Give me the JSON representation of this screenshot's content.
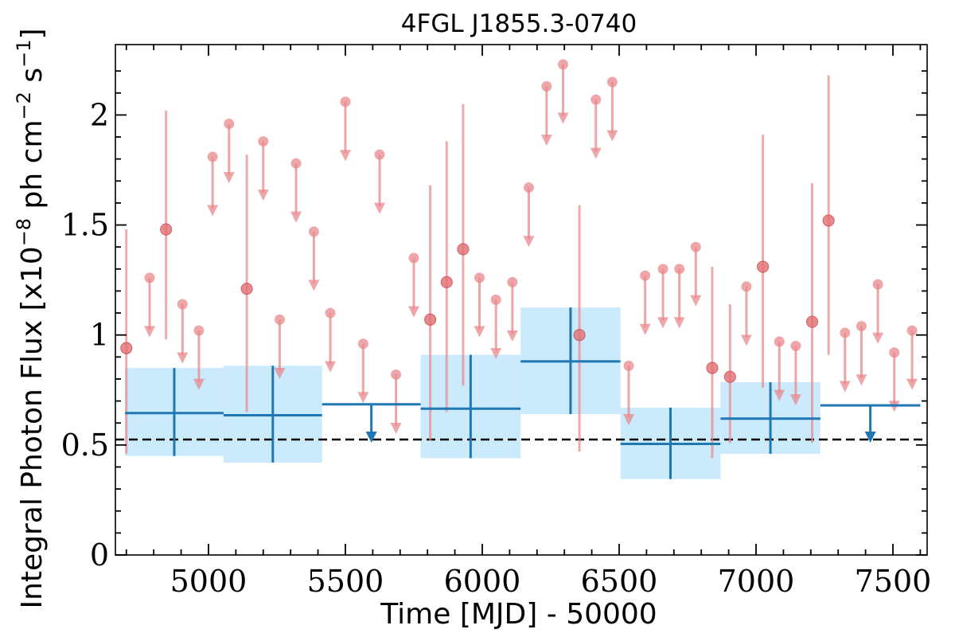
{
  "chart_data": {
    "type": "scatter",
    "title": "4FGL J1855.3-0740",
    "xlabel": "Time [MJD] - 50000",
    "ylabel": "Integral Photon Flux [x10",
    "ylabel_exp": "−8",
    "ylabel_mid": " ph cm",
    "ylabel_exp2": "−2",
    "ylabel_end": " s",
    "ylabel_exp3": "−1",
    "ylabel_close": "]",
    "xlim": [
      4660,
      7625
    ],
    "ylim": [
      0,
      2.32
    ],
    "x_ticks": [
      5000,
      5500,
      6000,
      6500,
      7000,
      7500
    ],
    "x_tick_labels": [
      "5000",
      "5500",
      "6000",
      "6500",
      "7000",
      "7500"
    ],
    "y_ticks": [
      0,
      0.5,
      1,
      1.5,
      2
    ],
    "y_tick_labels": [
      "0",
      "0.5",
      "1",
      "1.5",
      "2"
    ],
    "reference_line": 0.525,
    "colors": {
      "short_bins": "#e8888c",
      "long_bins": "#1f77b4",
      "band_fill": "#cbeafc",
      "reference": "#000000"
    },
    "series": [
      {
        "type": "errorbar_with_upper_limits",
        "detections": [
          {
            "x": 4700,
            "y": 0.94,
            "ylo": 0.46,
            "yhi": 1.48
          },
          {
            "x": 4845,
            "y": 1.48,
            "ylo": 0.98,
            "yhi": 2.02
          },
          {
            "x": 5140,
            "y": 1.21,
            "ylo": 0.65,
            "yhi": 1.82
          },
          {
            "x": 5810,
            "y": 1.07,
            "ylo": 0.52,
            "yhi": 1.68
          },
          {
            "x": 5870,
            "y": 1.24,
            "ylo": 0.65,
            "yhi": 1.88
          },
          {
            "x": 5930,
            "y": 1.39,
            "ylo": 0.77,
            "yhi": 2.05
          },
          {
            "x": 6355,
            "y": 1.0,
            "ylo": 0.47,
            "yhi": 1.59
          },
          {
            "x": 6840,
            "y": 0.85,
            "ylo": 0.44,
            "yhi": 1.31
          },
          {
            "x": 6905,
            "y": 0.81,
            "ylo": 0.51,
            "yhi": 1.14
          },
          {
            "x": 7025,
            "y": 1.31,
            "ylo": 0.76,
            "yhi": 1.91
          },
          {
            "x": 7205,
            "y": 1.06,
            "ylo": 0.51,
            "yhi": 1.69
          },
          {
            "x": 7265,
            "y": 1.52,
            "ylo": 0.91,
            "yhi": 2.18
          }
        ],
        "upper_limits": [
          {
            "x": 4785,
            "y": 1.26
          },
          {
            "x": 4905,
            "y": 1.14
          },
          {
            "x": 4965,
            "y": 1.02
          },
          {
            "x": 5015,
            "y": 1.81
          },
          {
            "x": 5075,
            "y": 1.96
          },
          {
            "x": 5200,
            "y": 1.88
          },
          {
            "x": 5260,
            "y": 1.07
          },
          {
            "x": 5320,
            "y": 1.78
          },
          {
            "x": 5385,
            "y": 1.47
          },
          {
            "x": 5445,
            "y": 1.1
          },
          {
            "x": 5500,
            "y": 2.06
          },
          {
            "x": 5565,
            "y": 0.96
          },
          {
            "x": 5625,
            "y": 1.82
          },
          {
            "x": 5685,
            "y": 0.82
          },
          {
            "x": 5750,
            "y": 1.35
          },
          {
            "x": 5990,
            "y": 1.26
          },
          {
            "x": 6050,
            "y": 1.16
          },
          {
            "x": 6110,
            "y": 1.24
          },
          {
            "x": 6170,
            "y": 1.67
          },
          {
            "x": 6235,
            "y": 2.13
          },
          {
            "x": 6295,
            "y": 2.23
          },
          {
            "x": 6415,
            "y": 2.07
          },
          {
            "x": 6475,
            "y": 2.15
          },
          {
            "x": 6535,
            "y": 0.86
          },
          {
            "x": 6595,
            "y": 1.27
          },
          {
            "x": 6660,
            "y": 1.3
          },
          {
            "x": 6720,
            "y": 1.3
          },
          {
            "x": 6780,
            "y": 1.4
          },
          {
            "x": 6965,
            "y": 1.22
          },
          {
            "x": 7085,
            "y": 0.97
          },
          {
            "x": 7145,
            "y": 0.95
          },
          {
            "x": 7325,
            "y": 1.01
          },
          {
            "x": 7385,
            "y": 1.04
          },
          {
            "x": 7445,
            "y": 1.23
          },
          {
            "x": 7505,
            "y": 0.92
          },
          {
            "x": 7570,
            "y": 1.02
          }
        ]
      },
      {
        "type": "binned_with_bands",
        "detections": [
          {
            "x0": 4695,
            "x1": 5055,
            "y": 0.645,
            "ylo": 0.45,
            "yhi": 0.85
          },
          {
            "x0": 5055,
            "x1": 5415,
            "y": 0.635,
            "ylo": 0.42,
            "yhi": 0.86
          },
          {
            "x0": 5775,
            "x1": 6140,
            "y": 0.665,
            "ylo": 0.44,
            "yhi": 0.91
          },
          {
            "x0": 6140,
            "x1": 6505,
            "y": 0.88,
            "ylo": 0.64,
            "yhi": 1.125
          },
          {
            "x0": 6505,
            "x1": 6870,
            "y": 0.505,
            "ylo": 0.345,
            "yhi": 0.67
          },
          {
            "x0": 6870,
            "x1": 7235,
            "y": 0.62,
            "ylo": 0.46,
            "yhi": 0.785
          }
        ],
        "upper_limits": [
          {
            "x0": 5415,
            "x1": 5775,
            "y": 0.685
          },
          {
            "x0": 7235,
            "x1": 7600,
            "y": 0.68
          }
        ]
      }
    ]
  }
}
